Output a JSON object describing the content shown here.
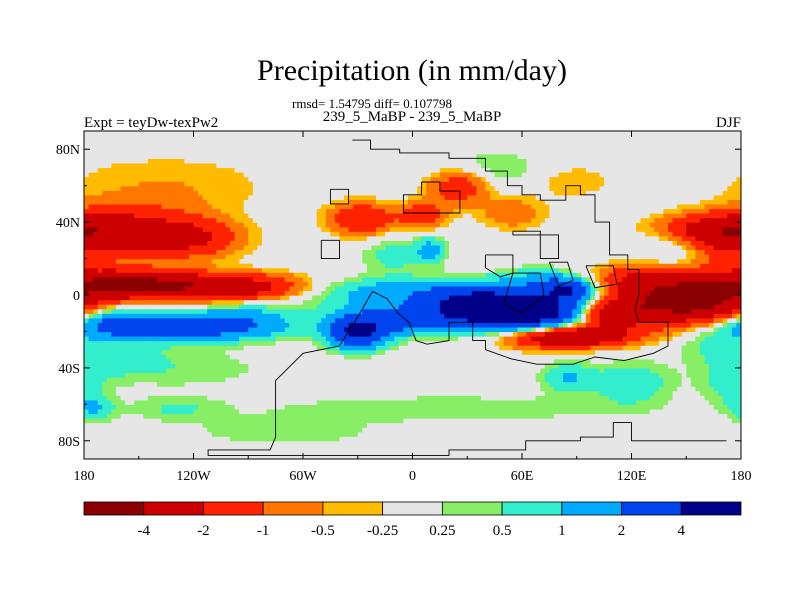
{
  "chart_data": {
    "type": "heatmap",
    "title": "Precipitation (in mm/day)",
    "stats_line": "rmsd= 1.54795  diff= 0.107798",
    "subtitle": "239_5_MaBP - 239_5_MaBP",
    "left_label": "Expt = teyDw-texPw2",
    "right_label": "DJF",
    "x_range": [
      -180,
      180
    ],
    "y_range": [
      -90,
      90
    ],
    "x_ticks": [
      {
        "value": -180,
        "label": "180"
      },
      {
        "value": -120,
        "label": "120W"
      },
      {
        "value": -60,
        "label": "60W"
      },
      {
        "value": 0,
        "label": "0"
      },
      {
        "value": 60,
        "label": "60E"
      },
      {
        "value": 120,
        "label": "120E"
      },
      {
        "value": 180,
        "label": "180"
      }
    ],
    "y_ticks": [
      {
        "value": 80,
        "label": "80N"
      },
      {
        "value": 40,
        "label": "40N"
      },
      {
        "value": 0,
        "label": "0"
      },
      {
        "value": -40,
        "label": "40S"
      },
      {
        "value": -80,
        "label": "80S"
      }
    ],
    "colorbar": {
      "levels": [
        -4,
        -2,
        -1,
        -0.5,
        -0.25,
        0.25,
        0.5,
        1,
        2,
        4
      ],
      "labels": [
        "-4",
        "-2",
        "-1",
        "-0.5",
        "-0.25",
        "0.25",
        "0.5",
        "1",
        "2",
        "4"
      ],
      "colors": [
        "#8b0000",
        "#cc0000",
        "#ff2200",
        "#ff7700",
        "#ffbb00",
        "#e6e6e6",
        "#88ee66",
        "#33eecc",
        "#00aaff",
        "#0044ee",
        "#000088"
      ]
    },
    "anomalies": [
      {
        "lon": -150,
        "lat": 35,
        "amp": -2.2,
        "rlon": 25,
        "rlat": 9
      },
      {
        "lon": -120,
        "lat": 31,
        "amp": -1.6,
        "rlon": 18,
        "rlat": 7
      },
      {
        "lon": -170,
        "lat": 34,
        "amp": -0.9,
        "rlon": 14,
        "rlat": 10
      },
      {
        "lon": -135,
        "lat": 60,
        "amp": -0.5,
        "rlon": 40,
        "rlat": 12
      },
      {
        "lon": -130,
        "lat": 5,
        "amp": -3.6,
        "rlon": 38,
        "rlat": 5
      },
      {
        "lon": -160,
        "lat": 8,
        "amp": -2.0,
        "rlon": 22,
        "rlat": 5
      },
      {
        "lon": -90,
        "lat": 4,
        "amp": -1.0,
        "rlon": 18,
        "rlat": 5
      },
      {
        "lon": -130,
        "lat": -17,
        "amp": 3.3,
        "rlon": 34,
        "rlat": 5
      },
      {
        "lon": -165,
        "lat": -13,
        "amp": 1.2,
        "rlon": 14,
        "rlat": 6
      },
      {
        "lon": -90,
        "lat": -12,
        "amp": 0.8,
        "rlon": 18,
        "rlat": 7
      },
      {
        "lon": -160,
        "lat": -34,
        "amp": 0.6,
        "rlon": 18,
        "rlat": 8
      },
      {
        "lon": -120,
        "lat": -40,
        "amp": 0.4,
        "rlon": 30,
        "rlat": 8
      },
      {
        "lon": -175,
        "lat": -62,
        "amp": 1.0,
        "rlon": 8,
        "rlat": 5
      },
      {
        "lon": -130,
        "lat": -62,
        "amp": 0.5,
        "rlon": 18,
        "rlat": 5
      },
      {
        "lon": -28,
        "lat": 42,
        "amp": -2.0,
        "rlon": 12,
        "rlat": 6
      },
      {
        "lon": 5,
        "lat": 44,
        "amp": -1.6,
        "rlon": 9,
        "rlat": 5
      },
      {
        "lon": 25,
        "lat": 60,
        "amp": -1.8,
        "rlon": 12,
        "rlat": 7
      },
      {
        "lon": 55,
        "lat": 45,
        "amp": -0.9,
        "rlon": 12,
        "rlat": 6
      },
      {
        "lon": 85,
        "lat": 63,
        "amp": -0.5,
        "rlon": 18,
        "rlat": 7
      },
      {
        "lon": -10,
        "lat": 22,
        "amp": 0.7,
        "rlon": 12,
        "rlat": 7
      },
      {
        "lon": 10,
        "lat": 25,
        "amp": 1.2,
        "rlon": 6,
        "rlat": 5
      },
      {
        "lon": 40,
        "lat": 68,
        "amp": 0.6,
        "rlon": 25,
        "rlat": 8
      },
      {
        "lon": 165,
        "lat": 36,
        "amp": -2.8,
        "rlon": 20,
        "rlat": 6
      },
      {
        "lon": 172,
        "lat": 25,
        "amp": -1.0,
        "rlon": 10,
        "rlat": 8
      },
      {
        "lon": 140,
        "lat": 28,
        "amp": 0.6,
        "rlon": 10,
        "rlat": 7
      },
      {
        "lon": 70,
        "lat": 8,
        "amp": 1.2,
        "rlon": 12,
        "rlat": 5
      },
      {
        "lon": 85,
        "lat": 3,
        "amp": 3.5,
        "rlon": 10,
        "rlat": 4
      },
      {
        "lon": 60,
        "lat": -9,
        "amp": 6.0,
        "rlon": 26,
        "rlat": 6
      },
      {
        "lon": 35,
        "lat": -3,
        "amp": 3.2,
        "rlon": 20,
        "rlat": 7
      },
      {
        "lon": -30,
        "lat": -20,
        "amp": 4.2,
        "rlon": 11,
        "rlat": 6
      },
      {
        "lon": -5,
        "lat": -14,
        "amp": 2.4,
        "rlon": 22,
        "rlat": 5
      },
      {
        "lon": 0,
        "lat": -3,
        "amp": 0.7,
        "rlon": 45,
        "rlat": 6
      },
      {
        "lon": -15,
        "lat": 3,
        "amp": 1.0,
        "rlon": 25,
        "rlat": 5
      },
      {
        "lon": 150,
        "lat": -2,
        "amp": -5.5,
        "rlon": 25,
        "rlat": 9
      },
      {
        "lon": 108,
        "lat": -10,
        "amp": -3.4,
        "rlon": 14,
        "rlat": 5
      },
      {
        "lon": 95,
        "lat": -22,
        "amp": -3.0,
        "rlon": 20,
        "rlat": 4
      },
      {
        "lon": 75,
        "lat": -24,
        "amp": -1.5,
        "rlon": 18,
        "rlat": 4
      },
      {
        "lon": 120,
        "lat": 10,
        "amp": -1.2,
        "rlon": 12,
        "rlat": 5
      },
      {
        "lon": 165,
        "lat": -25,
        "amp": 0.6,
        "rlon": 15,
        "rlat": 10
      },
      {
        "lon": 120,
        "lat": -48,
        "amp": 0.9,
        "rlon": 15,
        "rlat": 8
      },
      {
        "lon": 85,
        "lat": -45,
        "amp": 1.0,
        "rlon": 10,
        "rlat": 6
      },
      {
        "lon": 175,
        "lat": -48,
        "amp": 0.7,
        "rlon": 12,
        "rlat": 8
      },
      {
        "lon": 20,
        "lat": -62,
        "amp": 0.5,
        "rlon": 70,
        "rlat": 5
      },
      {
        "lon": -70,
        "lat": -75,
        "amp": 0.4,
        "rlon": 40,
        "rlat": 6
      }
    ],
    "continent_outline": [
      [
        -33,
        85
      ],
      [
        -23,
        85
      ],
      [
        -23,
        80
      ],
      [
        -7,
        80
      ],
      [
        -7,
        78
      ],
      [
        20,
        78
      ],
      [
        20,
        75
      ],
      [
        40,
        75
      ],
      [
        40,
        68
      ],
      [
        52,
        68
      ],
      [
        52,
        60
      ],
      [
        60,
        60
      ],
      [
        60,
        55
      ],
      [
        70,
        55
      ],
      [
        70,
        52
      ],
      [
        84,
        52
      ],
      [
        84,
        60
      ],
      [
        92,
        60
      ],
      [
        92,
        55
      ],
      [
        100,
        55
      ],
      [
        100,
        40
      ],
      [
        108,
        40
      ],
      [
        108,
        22
      ],
      [
        118,
        22
      ],
      [
        118,
        14
      ],
      [
        124,
        14
      ],
      [
        124,
        0
      ],
      [
        122,
        -8
      ],
      [
        124,
        -15
      ],
      [
        140,
        -15
      ],
      [
        140,
        -28
      ],
      [
        132,
        -32
      ],
      [
        116,
        -36
      ],
      [
        100,
        -34
      ],
      [
        88,
        -38
      ],
      [
        68,
        -38
      ],
      [
        54,
        -35
      ],
      [
        40,
        -30
      ],
      [
        40,
        -25
      ],
      [
        33,
        -25
      ],
      [
        33,
        -15
      ],
      [
        20,
        -15
      ],
      [
        20,
        -25
      ],
      [
        8,
        -27
      ],
      [
        2,
        -25
      ],
      [
        -2,
        -15
      ],
      [
        -8,
        -10
      ],
      [
        -14,
        -2
      ],
      [
        -22,
        2
      ],
      [
        -30,
        -12
      ],
      [
        -40,
        -28
      ],
      [
        -60,
        -32
      ],
      [
        -75,
        -47
      ],
      [
        -75,
        -78
      ],
      [
        -78,
        -85
      ],
      [
        -112,
        -85
      ],
      [
        -112,
        -88
      ],
      [
        -70,
        -88
      ],
      [
        20,
        -88
      ],
      [
        20,
        -85
      ],
      [
        62,
        -85
      ],
      [
        62,
        -80
      ],
      [
        92,
        -80
      ],
      [
        92,
        -78
      ],
      [
        110,
        -78
      ],
      [
        110,
        -70
      ],
      [
        120,
        -70
      ],
      [
        120,
        -80
      ],
      [
        172,
        -80
      ]
    ],
    "inner_outlines": [
      [
        [
          5,
          62
        ],
        [
          15,
          62
        ],
        [
          15,
          57
        ],
        [
          26,
          57
        ],
        [
          26,
          45
        ],
        [
          10,
          45
        ],
        [
          -5,
          45
        ],
        [
          -5,
          55
        ],
        [
          5,
          55
        ],
        [
          5,
          62
        ]
      ],
      [
        [
          -45,
          58
        ],
        [
          -35,
          58
        ],
        [
          -35,
          50
        ],
        [
          -45,
          50
        ],
        [
          -45,
          58
        ]
      ],
      [
        [
          55,
          35
        ],
        [
          70,
          35
        ],
        [
          70,
          20
        ],
        [
          80,
          20
        ],
        [
          80,
          33
        ],
        [
          55,
          33
        ],
        [
          55,
          35
        ]
      ],
      [
        [
          40,
          22
        ],
        [
          55,
          22
        ],
        [
          55,
          12
        ],
        [
          48,
          10
        ],
        [
          40,
          15
        ],
        [
          40,
          22
        ]
      ],
      [
        [
          55,
          12
        ],
        [
          70,
          12
        ],
        [
          72,
          0
        ],
        [
          60,
          -10
        ],
        [
          50,
          -5
        ],
        [
          55,
          12
        ]
      ],
      [
        [
          75,
          18
        ],
        [
          85,
          18
        ],
        [
          88,
          8
        ],
        [
          80,
          5
        ],
        [
          75,
          18
        ]
      ],
      [
        [
          95,
          16
        ],
        [
          110,
          16
        ],
        [
          112,
          6
        ],
        [
          100,
          4
        ],
        [
          95,
          16
        ]
      ],
      [
        [
          -50,
          30
        ],
        [
          -40,
          30
        ],
        [
          -40,
          20
        ],
        [
          -50,
          20
        ],
        [
          -50,
          30
        ]
      ]
    ]
  }
}
